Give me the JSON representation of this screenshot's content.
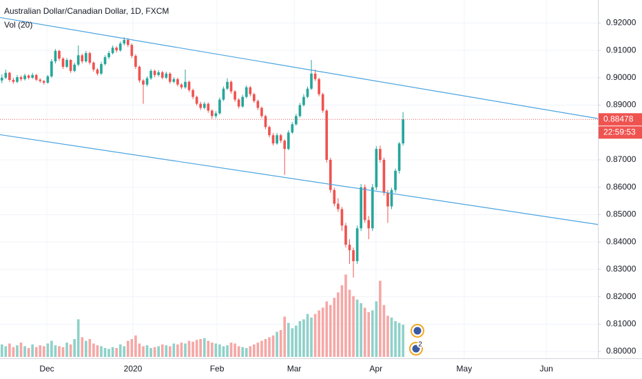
{
  "chart_data": {
    "type": "candlestick",
    "title": "Australian Dollar/Canadian Dollar, 1D, FXCM",
    "indicator": "Vol (20)",
    "up_color": "#26a69a",
    "down_color": "#ef5350",
    "volume_up_color": "#8fd1c9",
    "volume_down_color": "#f5a8a6",
    "trend_color": "#4aa3df",
    "grid": true,
    "ylim": [
      0.7975,
      0.9284
    ],
    "yticks": [
      {
        "value": 0.92,
        "label": "0.92000"
      },
      {
        "value": 0.91,
        "label": "0.91000"
      },
      {
        "value": 0.9,
        "label": "0.90000"
      },
      {
        "value": 0.89,
        "label": "0.89000"
      },
      {
        "value": 0.88,
        "label": "0.88000"
      },
      {
        "value": 0.87,
        "label": "0.87000"
      },
      {
        "value": 0.86,
        "label": "0.86000"
      },
      {
        "value": 0.85,
        "label": "0.85000"
      },
      {
        "value": 0.84,
        "label": "0.84000"
      },
      {
        "value": 0.83,
        "label": "0.83000"
      },
      {
        "value": 0.82,
        "label": "0.82000"
      },
      {
        "value": 0.81,
        "label": "0.81000"
      },
      {
        "value": 0.8,
        "label": "0.80000"
      }
    ],
    "xlim": [
      -0.5,
      156
    ],
    "xticks": [
      {
        "value": 11.76,
        "label": "Dec"
      },
      {
        "value": 34.3,
        "label": "2020"
      },
      {
        "value": 56.3,
        "label": "Feb"
      },
      {
        "value": 76.5,
        "label": "Mar"
      },
      {
        "value": 97.9,
        "label": "Apr"
      },
      {
        "value": 121.0,
        "label": "May"
      },
      {
        "value": 142.5,
        "label": "Jun"
      }
    ],
    "last_price": {
      "value": 0.88478,
      "label": "0.88478"
    },
    "countdown": "22:59:53",
    "event_badge": 2,
    "volume_ylim": [
      0,
      100
    ],
    "trendlines": [
      {
        "start": [
          -0.5,
          0.922
        ],
        "end": [
          156,
          0.8851
        ]
      },
      {
        "start": [
          -0.5,
          0.8792
        ],
        "end": [
          156,
          0.8464
        ]
      }
    ],
    "candles": [
      [
        0.899,
        0.9012,
        0.898,
        0.9
      ],
      [
        0.9,
        0.903,
        0.8995,
        0.9018
      ],
      [
        0.9018,
        0.9022,
        0.8985,
        0.8992
      ],
      [
        0.8992,
        0.9,
        0.8978,
        0.8985
      ],
      [
        0.8985,
        0.901,
        0.898,
        0.9002
      ],
      [
        0.9002,
        0.9008,
        0.8988,
        0.8995
      ],
      [
        0.8995,
        0.9015,
        0.899,
        0.9008
      ],
      [
        0.9008,
        0.9012,
        0.8994,
        0.9
      ],
      [
        0.9,
        0.9018,
        0.8996,
        0.901
      ],
      [
        0.901,
        0.9014,
        0.8988,
        0.8993
      ],
      [
        0.8993,
        0.8998,
        0.8982,
        0.8988
      ],
      [
        0.8988,
        0.8992,
        0.8975,
        0.8982
      ],
      [
        0.8982,
        0.901,
        0.8978,
        0.9005
      ],
      [
        0.9005,
        0.9068,
        0.9,
        0.906
      ],
      [
        0.906,
        0.9105,
        0.9052,
        0.9098
      ],
      [
        0.9098,
        0.9102,
        0.9062,
        0.907
      ],
      [
        0.907,
        0.9075,
        0.9032,
        0.904
      ],
      [
        0.904,
        0.9072,
        0.9035,
        0.9065
      ],
      [
        0.9065,
        0.9068,
        0.9018,
        0.9025
      ],
      [
        0.9025,
        0.9055,
        0.902,
        0.9048
      ],
      [
        0.9048,
        0.9118,
        0.9042,
        0.9082
      ],
      [
        0.9082,
        0.9088,
        0.9052,
        0.906
      ],
      [
        0.906,
        0.9098,
        0.9055,
        0.909
      ],
      [
        0.909,
        0.9095,
        0.9048,
        0.9055
      ],
      [
        0.9055,
        0.906,
        0.9022,
        0.903
      ],
      [
        0.903,
        0.9035,
        0.9008,
        0.9015
      ],
      [
        0.9015,
        0.9058,
        0.901,
        0.905
      ],
      [
        0.905,
        0.9082,
        0.9045,
        0.9075
      ],
      [
        0.9075,
        0.9098,
        0.9068,
        0.909
      ],
      [
        0.909,
        0.9118,
        0.9085,
        0.911
      ],
      [
        0.911,
        0.9115,
        0.9092,
        0.91
      ],
      [
        0.91,
        0.9132,
        0.9095,
        0.9125
      ],
      [
        0.9125,
        0.9148,
        0.9118,
        0.9138
      ],
      [
        0.9138,
        0.9145,
        0.9112,
        0.912
      ],
      [
        0.912,
        0.9125,
        0.9072,
        0.908
      ],
      [
        0.908,
        0.9086,
        0.9032,
        0.904
      ],
      [
        0.904,
        0.9045,
        0.8982,
        0.899
      ],
      [
        0.899,
        0.8995,
        0.8905,
        0.8975
      ],
      [
        0.8975,
        0.9005,
        0.8968,
        0.8998
      ],
      [
        0.8998,
        0.9032,
        0.8992,
        0.9025
      ],
      [
        0.9025,
        0.903,
        0.9002,
        0.901
      ],
      [
        0.901,
        0.9028,
        0.9004,
        0.902
      ],
      [
        0.902,
        0.9025,
        0.8994,
        0.9
      ],
      [
        0.9,
        0.9022,
        0.8995,
        0.9015
      ],
      [
        0.9015,
        0.902,
        0.8978,
        0.8985
      ],
      [
        0.8985,
        0.9002,
        0.898,
        0.8995
      ],
      [
        0.8995,
        0.9,
        0.8968,
        0.8975
      ],
      [
        0.8975,
        0.898,
        0.8958,
        0.8965
      ],
      [
        0.8965,
        0.903,
        0.896,
        0.8985
      ],
      [
        0.8985,
        0.899,
        0.8948,
        0.8955
      ],
      [
        0.8955,
        0.896,
        0.8922,
        0.893
      ],
      [
        0.893,
        0.8935,
        0.8898,
        0.8905
      ],
      [
        0.8905,
        0.8912,
        0.8882,
        0.889
      ],
      [
        0.889,
        0.8912,
        0.8885,
        0.8905
      ],
      [
        0.8905,
        0.891,
        0.8872,
        0.888
      ],
      [
        0.888,
        0.8885,
        0.885,
        0.886
      ],
      [
        0.886,
        0.8878,
        0.8852,
        0.887
      ],
      [
        0.887,
        0.8928,
        0.8865,
        0.892
      ],
      [
        0.892,
        0.8968,
        0.8915,
        0.896
      ],
      [
        0.896,
        0.8998,
        0.8955,
        0.8985
      ],
      [
        0.8985,
        0.899,
        0.8942,
        0.895
      ],
      [
        0.895,
        0.8955,
        0.8912,
        0.892
      ],
      [
        0.892,
        0.8925,
        0.8888,
        0.8895
      ],
      [
        0.8895,
        0.8938,
        0.889,
        0.893
      ],
      [
        0.893,
        0.8972,
        0.8925,
        0.8965
      ],
      [
        0.8965,
        0.897,
        0.8932,
        0.894
      ],
      [
        0.894,
        0.8945,
        0.8908,
        0.8915
      ],
      [
        0.8915,
        0.892,
        0.8882,
        0.889
      ],
      [
        0.889,
        0.8895,
        0.8852,
        0.886
      ],
      [
        0.886,
        0.8865,
        0.8812,
        0.882
      ],
      [
        0.882,
        0.8825,
        0.8782,
        0.879
      ],
      [
        0.879,
        0.8798,
        0.8752,
        0.876
      ],
      [
        0.876,
        0.8798,
        0.8755,
        0.879
      ],
      [
        0.879,
        0.8795,
        0.8762,
        0.877
      ],
      [
        0.877,
        0.8775,
        0.8645,
        0.874
      ],
      [
        0.874,
        0.8808,
        0.8735,
        0.88
      ],
      [
        0.88,
        0.8838,
        0.8795,
        0.883
      ],
      [
        0.883,
        0.8868,
        0.8825,
        0.886
      ],
      [
        0.886,
        0.8908,
        0.8855,
        0.89
      ],
      [
        0.89,
        0.894,
        0.8895,
        0.893
      ],
      [
        0.893,
        0.8968,
        0.8925,
        0.896
      ],
      [
        0.896,
        0.9065,
        0.8955,
        0.9015
      ],
      [
        0.9015,
        0.903,
        0.8988,
        0.8995
      ],
      [
        0.8995,
        0.9,
        0.8932,
        0.894
      ],
      [
        0.894,
        0.8945,
        0.8872,
        0.888
      ],
      [
        0.888,
        0.8885,
        0.869,
        0.87
      ],
      [
        0.87,
        0.8708,
        0.858,
        0.859
      ],
      [
        0.859,
        0.8598,
        0.853,
        0.854
      ],
      [
        0.854,
        0.856,
        0.851,
        0.852
      ],
      [
        0.852,
        0.8528,
        0.844,
        0.846
      ],
      [
        0.846,
        0.847,
        0.838,
        0.839
      ],
      [
        0.839,
        0.841,
        0.832,
        0.837
      ],
      [
        0.837,
        0.838,
        0.827,
        0.833
      ],
      [
        0.833,
        0.846,
        0.832,
        0.845
      ],
      [
        0.845,
        0.8612,
        0.844,
        0.86
      ],
      [
        0.86,
        0.861,
        0.847,
        0.848
      ],
      [
        0.848,
        0.8495,
        0.841,
        0.845
      ],
      [
        0.845,
        0.8612,
        0.844,
        0.86
      ],
      [
        0.86,
        0.875,
        0.859,
        0.874
      ],
      [
        0.874,
        0.8752,
        0.869,
        0.87
      ],
      [
        0.87,
        0.8708,
        0.857,
        0.858
      ],
      [
        0.858,
        0.859,
        0.847,
        0.853
      ],
      [
        0.853,
        0.8598,
        0.852,
        0.859
      ],
      [
        0.859,
        0.8668,
        0.858,
        0.866
      ],
      [
        0.866,
        0.8765,
        0.865,
        0.876
      ],
      [
        0.876,
        0.8875,
        0.8752,
        0.8848
      ]
    ],
    "volume": [
      14,
      12,
      15,
      11,
      13,
      16,
      12,
      10,
      14,
      11,
      13,
      12,
      15,
      18,
      13,
      12,
      11,
      16,
      14,
      20,
      42,
      22,
      18,
      20,
      15,
      13,
      12,
      10,
      9,
      11,
      10,
      14,
      12,
      18,
      20,
      24,
      15,
      12,
      13,
      10,
      11,
      12,
      14,
      13,
      12,
      15,
      14,
      16,
      15,
      18,
      17,
      19,
      20,
      21,
      18,
      16,
      15,
      14,
      12,
      13,
      16,
      15,
      12,
      11,
      10,
      12,
      14,
      16,
      18,
      20,
      22,
      24,
      28,
      30,
      45,
      38,
      32,
      35,
      40,
      42,
      48,
      44,
      48,
      52,
      55,
      62,
      58,
      66,
      72,
      80,
      92,
      75,
      68,
      64,
      60,
      55,
      50,
      52,
      62,
      85,
      58,
      46,
      44,
      40,
      38,
      36
    ]
  }
}
